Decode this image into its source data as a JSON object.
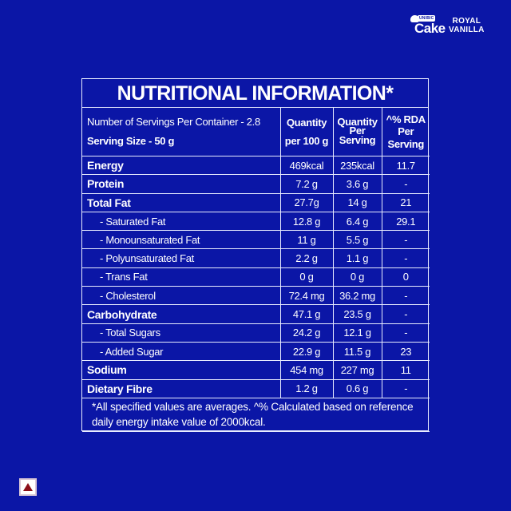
{
  "brand": {
    "logo_badge": "UNIBIC",
    "logo_word": "Cake",
    "product_line1": "ROYAL",
    "product_line2": "VANILLA"
  },
  "panel": {
    "title": "NUTRITIONAL INFORMATION*",
    "header": {
      "servings_per_container": "Number of Servings Per Container - 2.8",
      "serving_size": "Serving Size - 50 g",
      "col2_line1": "Quantity",
      "col2_line2": "per 100 g",
      "col3_line1": "Quantity",
      "col3_line2": "Per",
      "col3_line3": "Serving",
      "col4_line1": "^% RDA",
      "col4_line2": "Per",
      "col4_line3": "Serving"
    },
    "rows": [
      {
        "name": "Energy",
        "per100": "469kcal",
        "perServing": "235kcal",
        "rda": "11.7"
      },
      {
        "name": "Protein",
        "per100": "7.2 g",
        "perServing": "3.6 g",
        "rda": "-"
      },
      {
        "name": "Total Fat",
        "per100": "27.7g",
        "perServing": "14 g",
        "rda": "21"
      },
      {
        "name": "- Saturated Fat",
        "per100": "12.8  g",
        "perServing": "6.4 g",
        "rda": "29.1"
      },
      {
        "name": "- Monounsaturated Fat",
        "per100": "11 g",
        "perServing": "5.5 g",
        "rda": "-"
      },
      {
        "name": "- Polyunsaturated Fat",
        "per100": "2.2 g",
        "perServing": "1.1 g",
        "rda": "-"
      },
      {
        "name": "- Trans Fat",
        "per100": "0 g",
        "perServing": "0 g",
        "rda": "0"
      },
      {
        "name": "- Cholesterol",
        "per100": "72.4 mg",
        "perServing": "36.2 mg",
        "rda": "-"
      },
      {
        "name": "Carbohydrate",
        "per100": "47.1 g",
        "perServing": "23.5 g",
        "rda": "-"
      },
      {
        "name": "- Total Sugars",
        "per100": "24.2 g",
        "perServing": "12.1 g",
        "rda": "-"
      },
      {
        "name": "- Added Sugar",
        "per100": "22.9 g",
        "perServing": "11.5 g",
        "rda": "23"
      },
      {
        "name": "Sodium",
        "per100": "454 mg",
        "perServing": "227 mg",
        "rda": "11"
      },
      {
        "name": "Dietary Fibre",
        "per100": "1.2 g",
        "perServing": "0.6 g",
        "rda": "-"
      }
    ],
    "footnote": "*All specified values are averages. ^% Calculated based on reference daily energy intake value of 2000kcal."
  },
  "colors": {
    "background": "#0b16a6",
    "text": "#ffffff",
    "rule": "#e8ecff",
    "warning_triangle": "#8b0f18"
  },
  "icons": {
    "bottom_left": "warning-triangle-icon"
  }
}
